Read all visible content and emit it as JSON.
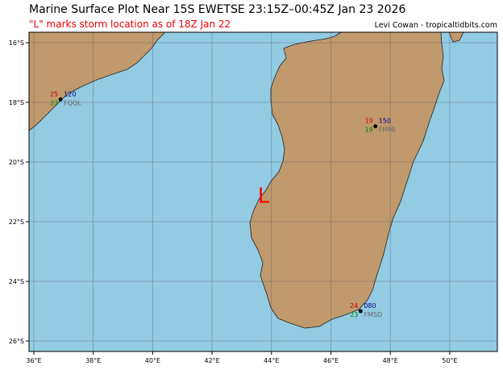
{
  "header": {
    "title": "Marine Surface Plot Near 15S EWETSE 23:15Z–00:45Z Jan 23 2026",
    "subtitle": "\"L\" marks storm location as of 18Z Jan 22",
    "credit": "Levi Cowan - tropicaltidbits.com"
  },
  "map": {
    "lon_range": [
      35.84,
      51.6
    ],
    "lat_range": [
      -26.35,
      -15.65
    ],
    "x_ticks": [
      "36°E",
      "38°E",
      "40°E",
      "42°E",
      "44°E",
      "46°E",
      "48°E",
      "50°E"
    ],
    "y_ticks": [
      "16°S",
      "18°S",
      "20°S",
      "22°S",
      "24°S",
      "26°S"
    ],
    "colors": {
      "ocean": "#93cbe2",
      "land": "#c09a6c",
      "temp": "#cc0000",
      "dewpoint": "#008800",
      "pressure": "#000088",
      "storm": "#ff0000"
    }
  },
  "storm": {
    "marker": "L",
    "lon": 43.7,
    "lat": -21.1
  },
  "stations": [
    {
      "id": "FQQL",
      "temp": "25",
      "dewpoint": "23",
      "pressure": "120",
      "lon": 36.9,
      "lat": -17.9
    },
    {
      "id": "FMMI",
      "temp": "19",
      "dewpoint": "19",
      "pressure": "150",
      "lon": 47.5,
      "lat": -18.8
    },
    {
      "id": "FMSD",
      "temp": "24",
      "dewpoint": "23",
      "pressure": "080",
      "lon": 47.0,
      "lat": -25.0
    }
  ]
}
